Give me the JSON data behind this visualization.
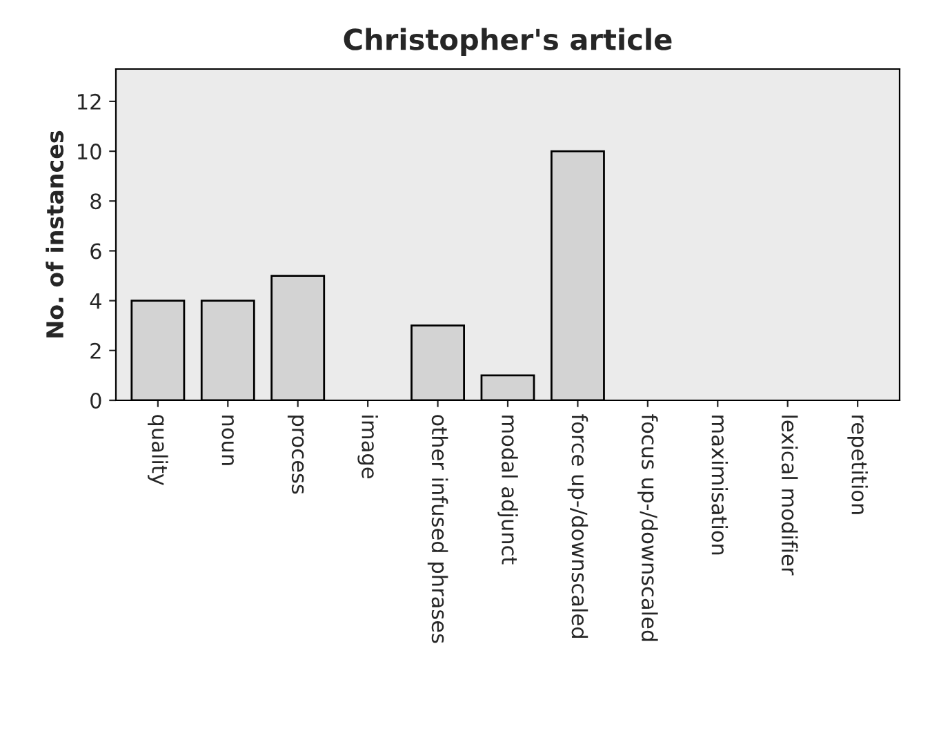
{
  "chart_data": {
    "type": "bar",
    "title": "Christopher's article",
    "ylabel": "No. of instances",
    "categories": [
      "quality",
      "noun",
      "process",
      "image",
      "other infused phrases",
      "modal adjunct",
      "force up-/downscaled",
      "focus up-/downscaled",
      "maximisation",
      "lexical modifier",
      "repetition"
    ],
    "values": [
      4,
      4,
      5,
      0,
      3,
      1,
      10,
      0,
      0,
      0,
      0
    ],
    "color": "#d3d3d3",
    "ylim": [
      0,
      13.3
    ],
    "yticks": [
      0,
      2,
      4,
      6,
      8,
      10,
      12
    ],
    "grid": false
  }
}
